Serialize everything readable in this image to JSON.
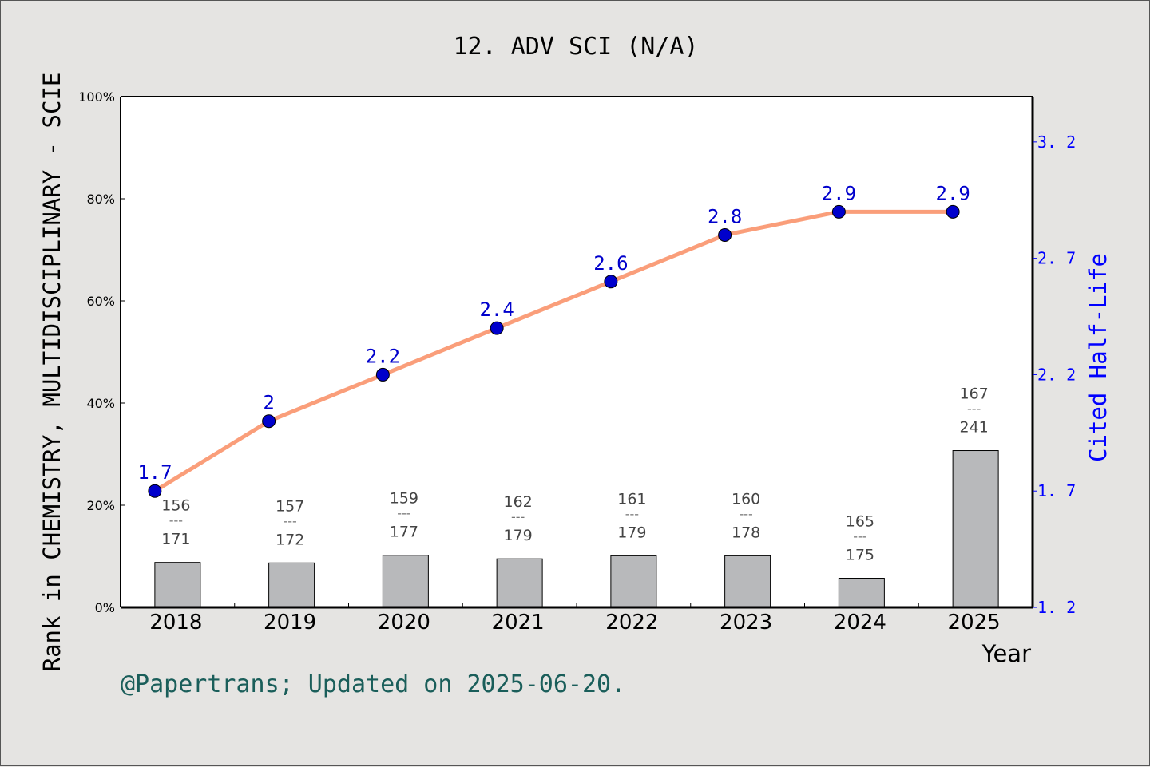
{
  "chart_data": {
    "type": "bar+line",
    "title": "12. ADV SCI (N/A)",
    "xlabel": "Year",
    "ylabel_left": "Rank in CHEMISTRY, MULTIDISCIPLINARY - SCIE",
    "ylabel_right": "Cited Half-Life",
    "categories": [
      "2018",
      "2019",
      "2020",
      "2021",
      "2022",
      "2023",
      "2024",
      "2025"
    ],
    "left_axis": {
      "ylim": [
        0,
        100
      ],
      "ticks": [
        "0%",
        "20%",
        "40%",
        "60%",
        "80%",
        "100%"
      ],
      "tick_values": [
        0,
        20,
        40,
        60,
        80,
        100
      ]
    },
    "right_axis": {
      "ylim": [
        1.2,
        3.395
      ],
      "ticks": [
        "1. 2",
        "1. 7",
        "2. 2",
        "2. 7",
        "3. 2"
      ],
      "tick_values": [
        1.2,
        1.7,
        2.2,
        2.7,
        3.2
      ]
    },
    "bars": {
      "rank": [
        156,
        157,
        159,
        162,
        161,
        160,
        165,
        167
      ],
      "total": [
        171,
        172,
        177,
        179,
        179,
        178,
        175,
        241
      ],
      "separator": "---",
      "percent": [
        8.8,
        8.7,
        10.2,
        9.5,
        10.1,
        10.1,
        5.7,
        30.7
      ]
    },
    "line": {
      "values": [
        1.7,
        2.0,
        2.2,
        2.4,
        2.6,
        2.8,
        2.9,
        2.9
      ],
      "labels": [
        "1.7",
        "2",
        "2.2",
        "2.4",
        "2.6",
        "2.8",
        "2.9",
        "2.9"
      ]
    },
    "colors": {
      "bar": "#b8b9bb",
      "line": "#fa9e7a",
      "marker": "#0000cc",
      "right_axis": "#0000ff",
      "footer": "#1a5e5a"
    },
    "grid": false,
    "legend": "none"
  },
  "footer": "@Papertrans; Updated on 2025-06-20."
}
